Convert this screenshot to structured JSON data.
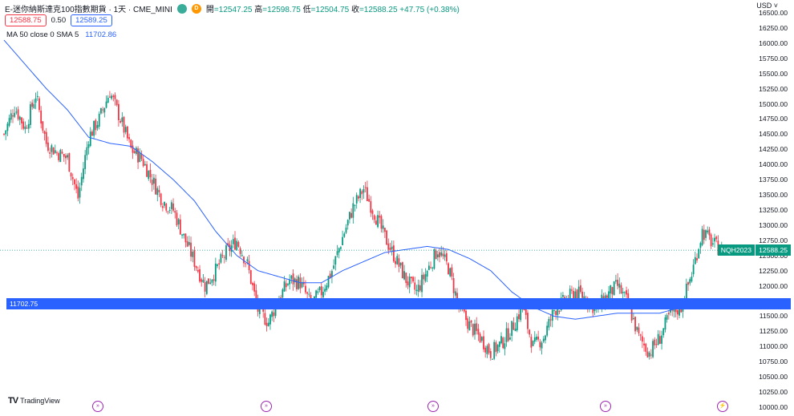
{
  "header": {
    "title": "E-迷你納斯達克100指數期貨 · 1天 · CME_MINI",
    "delay_badge": "D",
    "open_label": "開",
    "open": "=12547.25",
    "high_label": "高",
    "high": "=12598.75",
    "low_label": "低",
    "low": "=12504.75",
    "close_label": "收",
    "close": "=12588.25",
    "change": "+47.75 (+0.38%)"
  },
  "quote": {
    "bid": "12588.75",
    "spread": "0.50",
    "ask": "12589.25"
  },
  "indicator": {
    "label": "MA 50 close 0 SMA 5",
    "value": "11702.86"
  },
  "currency_label": "USD ˅",
  "logo_text": "TradingView",
  "badges": {
    "symbol": "NQH2023",
    "price": "12588.25",
    "ma": "11702.75"
  },
  "colors": {
    "up": "#089981",
    "down": "#f23645",
    "ma": "#2962ff",
    "event": "#9c27b0"
  },
  "chart_data": {
    "type": "candlestick",
    "y_axis": {
      "range": [
        10000,
        16500
      ],
      "ticks": [
        "16500.00",
        "16250.00",
        "16000.00",
        "15750.00",
        "15500.00",
        "15250.00",
        "15000.00",
        "14750.00",
        "14500.00",
        "14250.00",
        "14000.00",
        "13750.00",
        "13500.00",
        "13250.00",
        "13000.00",
        "12750.00",
        "12500.00",
        "12250.00",
        "12000.00",
        "11750.00",
        "11500.00",
        "11250.00",
        "11000.00",
        "10750.00",
        "10500.00",
        "10250.00",
        "10000.00"
      ]
    },
    "last_price": 12588.25,
    "ma_last": 11702.75,
    "anchors": [
      [
        0,
        14500
      ],
      [
        6,
        14950
      ],
      [
        12,
        14600
      ],
      [
        18,
        15150
      ],
      [
        24,
        14350
      ],
      [
        30,
        14200
      ],
      [
        36,
        14100
      ],
      [
        42,
        13450
      ],
      [
        48,
        14450
      ],
      [
        54,
        14750
      ],
      [
        60,
        15200
      ],
      [
        66,
        14750
      ],
      [
        72,
        14250
      ],
      [
        78,
        14100
      ],
      [
        84,
        13750
      ],
      [
        90,
        13400
      ],
      [
        96,
        13250
      ],
      [
        102,
        12800
      ],
      [
        108,
        12400
      ],
      [
        114,
        12000
      ],
      [
        120,
        12250
      ],
      [
        126,
        12550
      ],
      [
        132,
        12750
      ],
      [
        138,
        12350
      ],
      [
        144,
        11600
      ],
      [
        150,
        11400
      ],
      [
        156,
        11800
      ],
      [
        162,
        12100
      ],
      [
        168,
        12050
      ],
      [
        174,
        11700
      ],
      [
        180,
        11900
      ],
      [
        186,
        12250
      ],
      [
        192,
        12800
      ],
      [
        198,
        13300
      ],
      [
        204,
        13600
      ],
      [
        210,
        13200
      ],
      [
        216,
        12800
      ],
      [
        222,
        12450
      ],
      [
        228,
        12100
      ],
      [
        234,
        11900
      ],
      [
        240,
        12250
      ],
      [
        246,
        12600
      ],
      [
        252,
        12300
      ],
      [
        258,
        11650
      ],
      [
        264,
        11350
      ],
      [
        270,
        11150
      ],
      [
        276,
        10900
      ],
      [
        282,
        11050
      ],
      [
        288,
        11300
      ],
      [
        294,
        11650
      ],
      [
        300,
        11000
      ],
      [
        306,
        11150
      ],
      [
        312,
        11600
      ],
      [
        318,
        11750
      ],
      [
        324,
        11900
      ],
      [
        330,
        11800
      ],
      [
        336,
        11600
      ],
      [
        342,
        11850
      ],
      [
        348,
        12000
      ],
      [
        354,
        11700
      ],
      [
        360,
        11150
      ],
      [
        366,
        10900
      ],
      [
        372,
        11150
      ],
      [
        378,
        11550
      ],
      [
        384,
        11650
      ],
      [
        390,
        12200
      ],
      [
        396,
        12900
      ],
      [
        402,
        12700
      ],
      [
        408,
        12550
      ]
    ],
    "ma_anchors": [
      [
        0,
        16050
      ],
      [
        12,
        15650
      ],
      [
        24,
        15250
      ],
      [
        36,
        14900
      ],
      [
        48,
        14450
      ],
      [
        60,
        14350
      ],
      [
        72,
        14300
      ],
      [
        84,
        14050
      ],
      [
        96,
        13750
      ],
      [
        108,
        13400
      ],
      [
        120,
        12900
      ],
      [
        132,
        12500
      ],
      [
        144,
        12250
      ],
      [
        156,
        12150
      ],
      [
        168,
        12050
      ],
      [
        180,
        12050
      ],
      [
        192,
        12250
      ],
      [
        204,
        12400
      ],
      [
        216,
        12550
      ],
      [
        228,
        12600
      ],
      [
        240,
        12650
      ],
      [
        252,
        12600
      ],
      [
        264,
        12450
      ],
      [
        276,
        12250
      ],
      [
        288,
        11900
      ],
      [
        300,
        11650
      ],
      [
        312,
        11500
      ],
      [
        324,
        11450
      ],
      [
        336,
        11500
      ],
      [
        348,
        11550
      ],
      [
        360,
        11550
      ],
      [
        372,
        11550
      ],
      [
        384,
        11650
      ],
      [
        396,
        11780
      ],
      [
        402,
        11702
      ]
    ],
    "bar_count": 409
  }
}
